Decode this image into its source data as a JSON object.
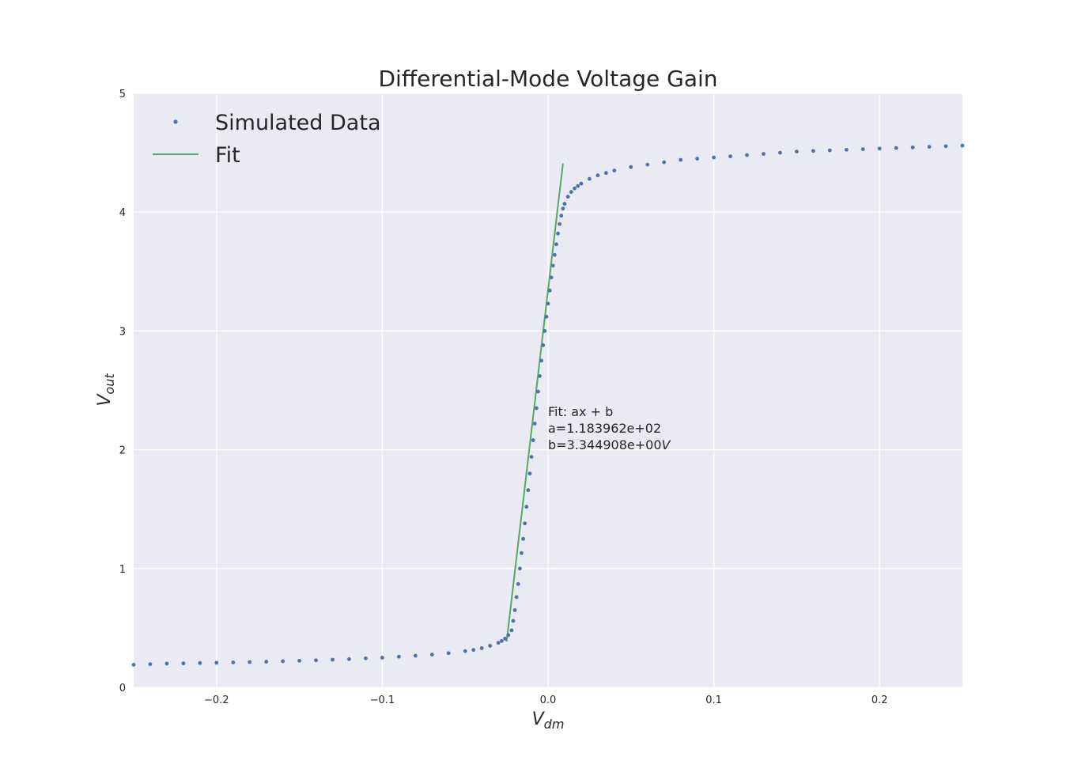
{
  "chart_data": {
    "type": "scatter",
    "title": "Differential-Mode Voltage Gain",
    "xlabel": {
      "main": "V",
      "sub": "dm"
    },
    "ylabel": {
      "main": "V",
      "sub": "out"
    },
    "xlim": [
      -0.25,
      0.25
    ],
    "ylim": [
      0,
      5
    ],
    "xticks": [
      {
        "value": -0.2,
        "label": "−0.2"
      },
      {
        "value": -0.1,
        "label": "−0.1"
      },
      {
        "value": 0.0,
        "label": "0.0"
      },
      {
        "value": 0.1,
        "label": "0.1"
      },
      {
        "value": 0.2,
        "label": "0.2"
      }
    ],
    "yticks": [
      {
        "value": 0,
        "label": "0"
      },
      {
        "value": 1,
        "label": "1"
      },
      {
        "value": 2,
        "label": "2"
      },
      {
        "value": 3,
        "label": "3"
      },
      {
        "value": 4,
        "label": "4"
      },
      {
        "value": 5,
        "label": "5"
      }
    ],
    "grid": true,
    "legend": {
      "placement": "top-left",
      "entries": [
        "Simulated Data",
        "Fit"
      ]
    },
    "series": [
      {
        "name": "Simulated Data",
        "kind": "points",
        "color": "#4c72b0",
        "x": [
          -0.25,
          -0.24,
          -0.23,
          -0.22,
          -0.21,
          -0.2,
          -0.19,
          -0.18,
          -0.17,
          -0.16,
          -0.15,
          -0.14,
          -0.13,
          -0.12,
          -0.11,
          -0.1,
          -0.09,
          -0.08,
          -0.07,
          -0.06,
          -0.05,
          -0.045,
          -0.04,
          -0.035,
          -0.03,
          -0.028,
          -0.026,
          -0.024,
          -0.022,
          -0.021,
          -0.02,
          -0.019,
          -0.018,
          -0.017,
          -0.016,
          -0.015,
          -0.014,
          -0.013,
          -0.012,
          -0.011,
          -0.01,
          -0.009,
          -0.008,
          -0.007,
          -0.006,
          -0.005,
          -0.004,
          -0.003,
          -0.002,
          -0.001,
          0.0,
          0.001,
          0.002,
          0.003,
          0.004,
          0.005,
          0.006,
          0.007,
          0.008,
          0.009,
          0.01,
          0.012,
          0.014,
          0.016,
          0.018,
          0.02,
          0.025,
          0.03,
          0.035,
          0.04,
          0.05,
          0.06,
          0.07,
          0.08,
          0.09,
          0.1,
          0.11,
          0.12,
          0.13,
          0.14,
          0.15,
          0.16,
          0.17,
          0.18,
          0.19,
          0.2,
          0.21,
          0.22,
          0.23,
          0.24,
          0.25
        ],
        "y": [
          0.19,
          0.195,
          0.2,
          0.202,
          0.205,
          0.207,
          0.21,
          0.213,
          0.216,
          0.22,
          0.224,
          0.228,
          0.233,
          0.238,
          0.244,
          0.25,
          0.258,
          0.266,
          0.276,
          0.288,
          0.305,
          0.315,
          0.33,
          0.35,
          0.375,
          0.39,
          0.41,
          0.44,
          0.48,
          0.56,
          0.65,
          0.76,
          0.87,
          1.0,
          1.13,
          1.25,
          1.38,
          1.52,
          1.66,
          1.8,
          1.94,
          2.08,
          2.22,
          2.35,
          2.49,
          2.62,
          2.75,
          2.88,
          3.0,
          3.12,
          3.23,
          3.34,
          3.45,
          3.55,
          3.64,
          3.73,
          3.82,
          3.9,
          3.97,
          4.03,
          4.07,
          4.13,
          4.17,
          4.2,
          4.22,
          4.24,
          4.28,
          4.31,
          4.33,
          4.35,
          4.38,
          4.4,
          4.42,
          4.44,
          4.45,
          4.46,
          4.47,
          4.48,
          4.49,
          4.5,
          4.51,
          4.515,
          4.52,
          4.525,
          4.53,
          4.535,
          4.54,
          4.545,
          4.55,
          4.555,
          4.56
        ]
      },
      {
        "name": "Fit",
        "kind": "line",
        "color": "#55a868",
        "x": [
          -0.025,
          0.009
        ],
        "y": [
          0.385,
          4.41
        ]
      }
    ],
    "annotation": {
      "lines": [
        "Fit: ax + b",
        "a=1.183962e+02",
        "b=3.344908e+00"
      ],
      "unit_suffix": "V",
      "x": 0.0,
      "y": 2.3
    }
  }
}
